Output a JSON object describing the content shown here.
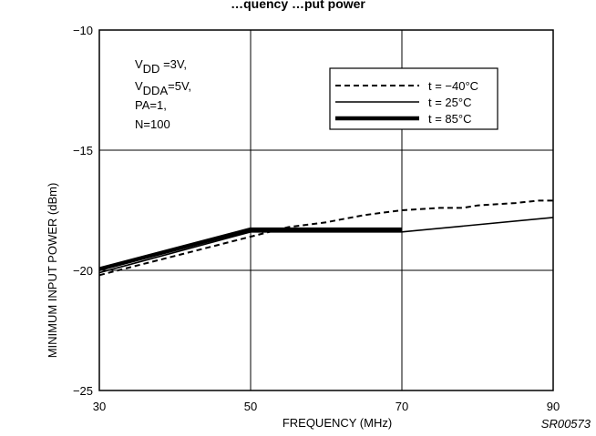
{
  "chart_data": {
    "type": "line",
    "title": "…quency …put power",
    "xlabel": "FREQUENCY (MHz)",
    "ylabel": "MINIMUM INPUT POWER (dBm)",
    "xlim": [
      30,
      90
    ],
    "ylim": [
      -25,
      -10
    ],
    "x_ticks": [
      "30",
      "50",
      "70",
      "90"
    ],
    "y_ticks": [
      "-10",
      "-15",
      "-20",
      "-25"
    ],
    "grid": true,
    "legend_position": "top-right",
    "series": [
      {
        "name": "t = −40°C",
        "style": "dashed",
        "x": [
          30,
          35,
          40,
          45,
          50,
          55,
          60,
          65,
          70,
          75,
          78,
          80,
          85,
          88,
          90
        ],
        "y": [
          -20.2,
          -19.8,
          -19.4,
          -19.0,
          -18.6,
          -18.2,
          -18.0,
          -17.7,
          -17.5,
          -17.4,
          -17.4,
          -17.3,
          -17.2,
          -17.1,
          -17.1
        ]
      },
      {
        "name": "t = 25°C",
        "style": "solid",
        "x": [
          30,
          50,
          70,
          90
        ],
        "y": [
          -20.1,
          -18.4,
          -18.4,
          -17.8
        ]
      },
      {
        "name": "t = 85°C",
        "style": "bold",
        "x": [
          30,
          50,
          70
        ],
        "y": [
          -19.95,
          -18.3,
          -18.3
        ]
      }
    ],
    "conditions": [
      {
        "main": "V",
        "sub": "DD",
        "rest": " =3V,"
      },
      {
        "main": "V",
        "sub": "DDA",
        "rest": "=5V,"
      },
      {
        "main": "PA=1,",
        "sub": "",
        "rest": ""
      },
      {
        "main": "N=100",
        "sub": "",
        "rest": ""
      }
    ],
    "figure_code": "SR00573"
  }
}
